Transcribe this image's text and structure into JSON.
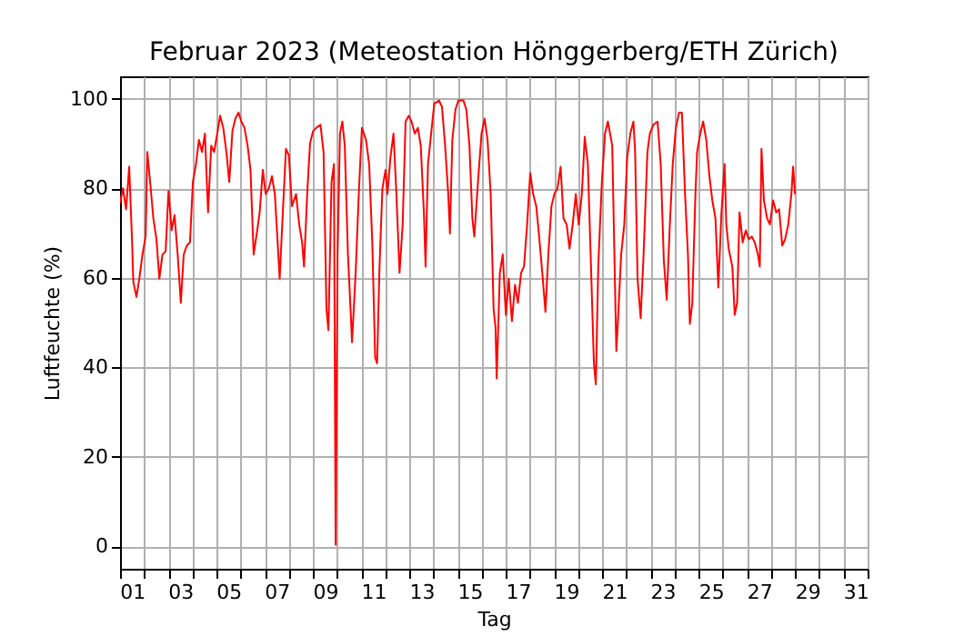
{
  "chart_data": {
    "type": "line",
    "title": "Februar 2023  (Meteostation Hönggerberg/ETH Zürich)",
    "xlabel": "Tag",
    "ylabel": "Luftfeuchte (%)",
    "xlim": [
      1,
      32
    ],
    "ylim": [
      -5,
      105
    ],
    "xticks": [
      {
        "value": 1,
        "label": null
      },
      {
        "value": 2,
        "label": null
      },
      {
        "value": 3,
        "label": null
      },
      {
        "value": 4,
        "label": null
      },
      {
        "value": 5,
        "label": null
      },
      {
        "value": 6,
        "label": null
      },
      {
        "value": 7,
        "label": null
      },
      {
        "value": 8,
        "label": null
      },
      {
        "value": 9,
        "label": null
      },
      {
        "value": 10,
        "label": null
      },
      {
        "value": 11,
        "label": null
      },
      {
        "value": 12,
        "label": null
      },
      {
        "value": 13,
        "label": null
      },
      {
        "value": 14,
        "label": null
      },
      {
        "value": 15,
        "label": null
      },
      {
        "value": 16,
        "label": null
      },
      {
        "value": 17,
        "label": null
      },
      {
        "value": 18,
        "label": null
      },
      {
        "value": 19,
        "label": null
      },
      {
        "value": 20,
        "label": null
      },
      {
        "value": 21,
        "label": null
      },
      {
        "value": 22,
        "label": null
      },
      {
        "value": 23,
        "label": null
      },
      {
        "value": 24,
        "label": null
      },
      {
        "value": 25,
        "label": null
      },
      {
        "value": 26,
        "label": null
      },
      {
        "value": 27,
        "label": null
      },
      {
        "value": 28,
        "label": null
      },
      {
        "value": 29,
        "label": null
      },
      {
        "value": 30,
        "label": null
      },
      {
        "value": 31,
        "label": null
      },
      {
        "value": 32,
        "label": null
      },
      {
        "value": 1.5,
        "label": "01"
      },
      {
        "value": 3.5,
        "label": "03"
      },
      {
        "value": 5.5,
        "label": "05"
      },
      {
        "value": 7.5,
        "label": "07"
      },
      {
        "value": 9.5,
        "label": "09"
      },
      {
        "value": 11.5,
        "label": "11"
      },
      {
        "value": 13.5,
        "label": "13"
      },
      {
        "value": 15.5,
        "label": "15"
      },
      {
        "value": 17.5,
        "label": "17"
      },
      {
        "value": 19.5,
        "label": "19"
      },
      {
        "value": 21.5,
        "label": "21"
      },
      {
        "value": 23.5,
        "label": "23"
      },
      {
        "value": 25.5,
        "label": "25"
      },
      {
        "value": 27.5,
        "label": "27"
      },
      {
        "value": 29.5,
        "label": "29"
      },
      {
        "value": 31.5,
        "label": "31"
      }
    ],
    "yticks": [
      0,
      20,
      40,
      60,
      80,
      100
    ],
    "grid": true,
    "line_style": "solid",
    "series": [
      {
        "color": "#ff0000",
        "x": [
          1.0,
          1.12,
          1.25,
          1.38,
          1.5,
          1.55,
          1.68,
          1.8,
          1.93,
          2.06,
          2.13,
          2.26,
          2.38,
          2.51,
          2.63,
          2.76,
          2.89,
          3.01,
          3.14,
          3.26,
          3.39,
          3.52,
          3.64,
          3.77,
          3.9,
          4.02,
          4.15,
          4.27,
          4.4,
          4.52,
          4.65,
          4.78,
          4.9,
          5.03,
          5.15,
          5.28,
          5.41,
          5.53,
          5.66,
          5.78,
          5.91,
          6.03,
          6.16,
          6.29,
          6.41,
          6.54,
          6.67,
          6.79,
          6.92,
          7.04,
          7.17,
          7.3,
          7.42,
          7.55,
          7.62,
          7.75,
          7.88,
          8.0,
          8.13,
          8.3,
          8.43,
          8.55,
          8.63,
          8.76,
          8.88,
          9.01,
          9.14,
          9.31,
          9.44,
          9.56,
          9.64,
          9.77,
          9.87,
          9.94,
          10.02,
          10.12,
          10.22,
          10.32,
          10.45,
          10.57,
          10.62,
          10.77,
          10.9,
          11.03,
          11.2,
          11.33,
          11.46,
          11.58,
          11.66,
          11.76,
          11.88,
          12.01,
          12.09,
          12.21,
          12.34,
          12.46,
          12.59,
          12.72,
          12.84,
          12.97,
          13.09,
          13.22,
          13.35,
          13.47,
          13.6,
          13.67,
          13.77,
          13.9,
          14.03,
          14.23,
          14.35,
          14.48,
          14.61,
          14.68,
          14.78,
          14.91,
          15.03,
          15.24,
          15.36,
          15.49,
          15.61,
          15.69,
          15.86,
          15.99,
          16.12,
          16.24,
          16.37,
          16.49,
          16.57,
          16.62,
          16.75,
          16.87,
          17.0,
          17.12,
          17.25,
          17.38,
          17.5,
          17.63,
          17.75,
          17.88,
          18.01,
          18.13,
          18.26,
          18.38,
          18.51,
          18.64,
          18.76,
          18.89,
          19.01,
          19.14,
          19.27,
          19.39,
          19.52,
          19.64,
          19.77,
          19.9,
          20.02,
          20.15,
          20.27,
          20.4,
          20.53,
          20.65,
          20.73,
          20.83,
          20.98,
          21.11,
          21.23,
          21.41,
          21.58,
          21.66,
          21.78,
          21.91,
          22.03,
          22.16,
          22.29,
          22.36,
          22.46,
          22.59,
          22.71,
          22.87,
          22.97,
          23.12,
          23.29,
          23.42,
          23.55,
          23.67,
          23.8,
          23.92,
          24.05,
          24.18,
          24.3,
          24.43,
          24.55,
          24.63,
          24.73,
          24.86,
          24.93,
          25.06,
          25.18,
          25.31,
          25.44,
          25.56,
          25.69,
          25.81,
          25.94,
          26.07,
          26.14,
          26.24,
          26.39,
          26.49,
          26.59,
          26.69,
          26.82,
          26.95,
          27.07,
          27.2,
          27.32,
          27.45,
          27.53,
          27.6,
          27.7,
          27.83,
          27.95,
          28.08,
          28.21,
          28.33,
          28.46,
          28.58,
          28.71,
          28.84,
          28.91,
          28.99
        ],
        "values": [
          76.7,
          80.0,
          75.3,
          84.8,
          67.9,
          59.1,
          55.7,
          59.8,
          65.2,
          69.2,
          88.1,
          80.7,
          73.3,
          68.6,
          59.8,
          65.2,
          65.9,
          79.4,
          70.6,
          74.0,
          65.2,
          54.4,
          65.2,
          67.2,
          67.9,
          81.4,
          85.4,
          90.8,
          88.1,
          92.2,
          74.6,
          89.5,
          88.1,
          92.2,
          96.2,
          93.5,
          88.1,
          81.4,
          92.8,
          95.5,
          96.9,
          94.9,
          93.5,
          89.5,
          84.1,
          65.2,
          69.9,
          74.6,
          84.1,
          78.7,
          80.0,
          82.7,
          78.7,
          66.5,
          59.8,
          74.6,
          88.8,
          87.4,
          76.0,
          78.7,
          71.9,
          67.9,
          62.5,
          78.7,
          90.1,
          92.8,
          93.5,
          94.2,
          88.1,
          53.0,
          48.3,
          81.4,
          85.4,
          0.4,
          65.2,
          92.2,
          94.9,
          89.5,
          65.2,
          51.7,
          45.6,
          61.1,
          78.7,
          93.5,
          90.8,
          85.4,
          67.9,
          42.2,
          40.9,
          62.5,
          80.0,
          84.1,
          78.7,
          86.8,
          92.2,
          78.7,
          61.1,
          71.9,
          94.9,
          96.2,
          94.9,
          92.2,
          93.5,
          89.5,
          74.6,
          62.5,
          85.4,
          92.2,
          98.9,
          99.6,
          98.2,
          89.5,
          78.7,
          69.9,
          90.8,
          97.6,
          99.6,
          99.6,
          97.6,
          89.5,
          73.3,
          69.2,
          82.7,
          92.2,
          95.5,
          90.8,
          78.7,
          53.0,
          49.0,
          37.5,
          61.1,
          65.2,
          51.7,
          59.8,
          50.3,
          58.4,
          54.4,
          61.1,
          62.5,
          71.9,
          83.4,
          78.7,
          76.0,
          69.2,
          61.1,
          52.4,
          65.2,
          76.0,
          78.7,
          80.0,
          84.8,
          73.3,
          71.9,
          66.5,
          71.9,
          78.7,
          71.9,
          78.7,
          91.5,
          85.4,
          62.5,
          40.9,
          36.2,
          62.5,
          81.4,
          92.2,
          94.9,
          89.5,
          43.6,
          51.7,
          65.2,
          71.9,
          86.8,
          92.2,
          94.9,
          88.1,
          59.8,
          51.0,
          65.2,
          88.1,
          92.2,
          94.2,
          94.9,
          85.4,
          63.8,
          55.1,
          71.9,
          85.4,
          93.5,
          96.9,
          96.9,
          78.7,
          65.2,
          49.7,
          54.4,
          78.7,
          88.1,
          92.2,
          94.9,
          90.8,
          82.7,
          77.3,
          73.3,
          57.8,
          74.6,
          85.4,
          71.9,
          66.5,
          62.5,
          51.7,
          54.4,
          74.6,
          67.9,
          70.6,
          68.6,
          69.2,
          67.9,
          65.2,
          62.5,
          88.8,
          77.3,
          73.3,
          71.9,
          77.3,
          74.6,
          75.3,
          67.2,
          68.6,
          71.9,
          78.7,
          84.8,
          78.7
        ]
      }
    ]
  }
}
